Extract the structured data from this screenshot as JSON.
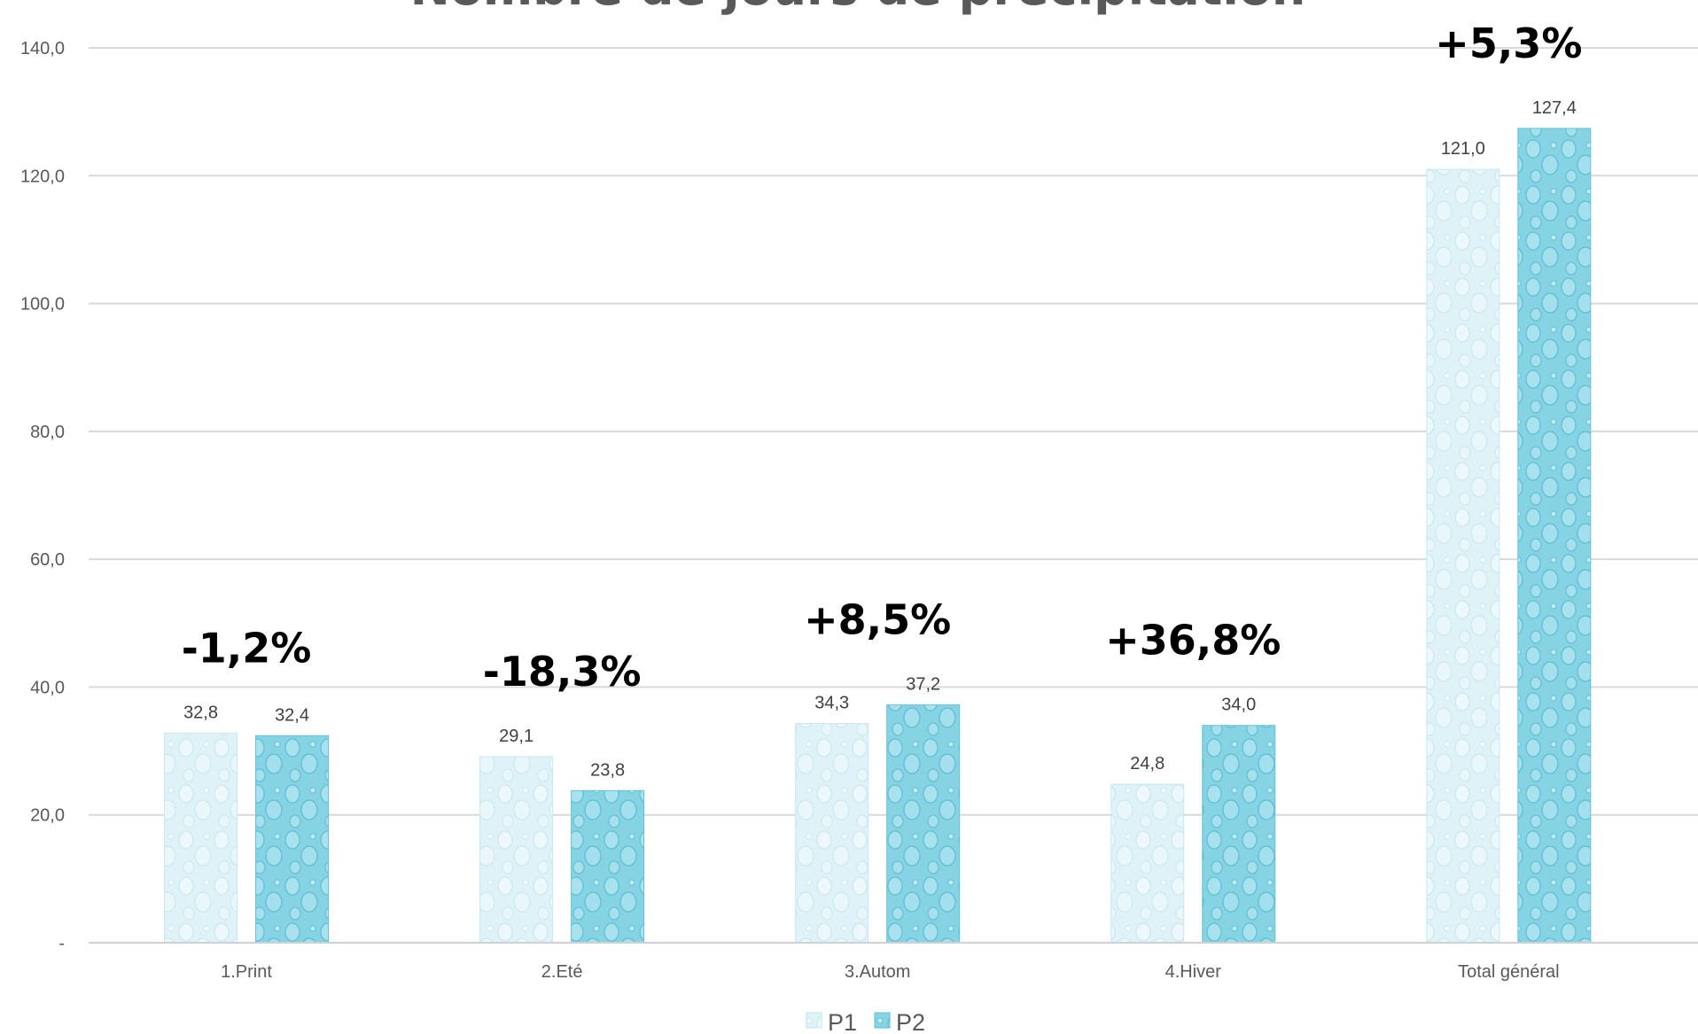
{
  "chart_data": {
    "type": "bar",
    "title": "Nombre de jours de précipitation",
    "categories": [
      "1.Print",
      "2.Eté",
      "3.Autom",
      "4.Hiver",
      "Total général"
    ],
    "series": [
      {
        "name": "P1",
        "values": [
          32.8,
          29.1,
          34.3,
          24.8,
          121.0
        ],
        "labels": [
          "32,8",
          "29,1",
          "34,3",
          "24,8",
          "121,0"
        ],
        "color": "#d4eef5"
      },
      {
        "name": "P2",
        "values": [
          32.4,
          23.8,
          37.2,
          34.0,
          127.4
        ],
        "labels": [
          "32,4",
          "23,8",
          "37,2",
          "34,0",
          "127,4"
        ],
        "color": "#7fd0e2"
      }
    ],
    "annotations": [
      "-1,2%",
      "-18,3%",
      "+8,5%",
      "+36,8%",
      "+5,3%"
    ],
    "ylim": [
      0,
      140
    ],
    "yticks": [
      0,
      20,
      40,
      60,
      80,
      100,
      120,
      140
    ],
    "ytick_labels": [
      "-",
      "20,0",
      "40,0",
      "60,0",
      "80,0",
      "100,0",
      "120,0",
      "140,0"
    ],
    "grid": true,
    "legend": "bottom-center"
  }
}
